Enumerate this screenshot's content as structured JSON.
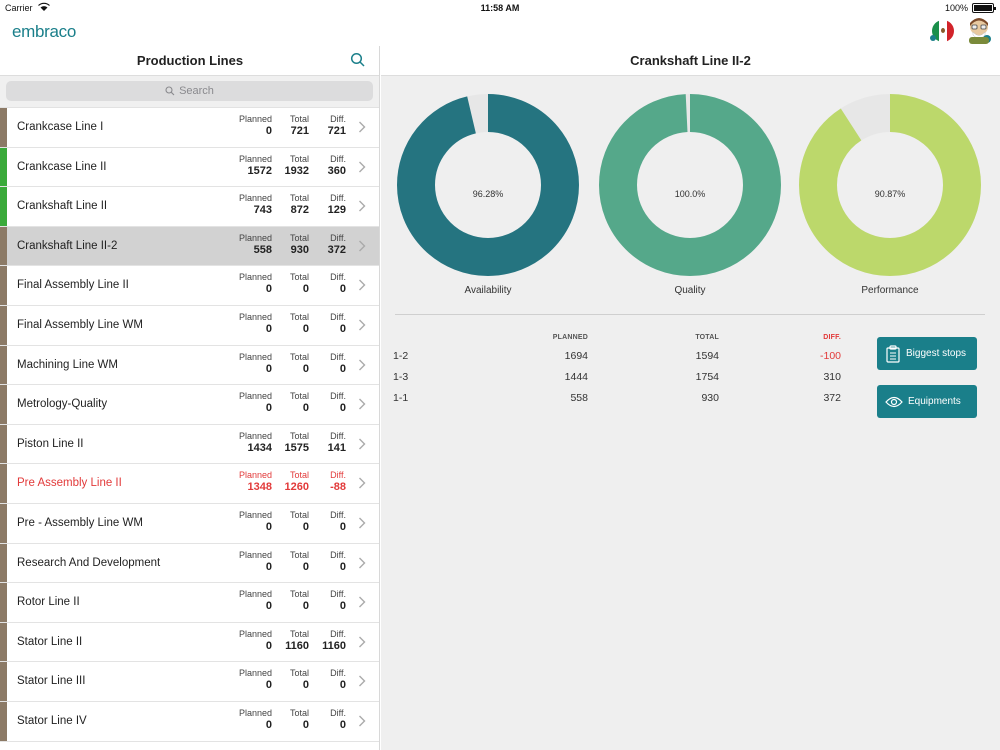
{
  "status": {
    "carrier": "Carrier",
    "time": "11:58 AM",
    "battery": "100%"
  },
  "brand": {
    "logo": "embraco",
    "accent": "#1a7f8a"
  },
  "left": {
    "title": "Production Lines",
    "search_placeholder": "Search",
    "lines": [
      {
        "name": "Crankcase Line I",
        "planned_label": "Planned",
        "planned": "0",
        "total_label": "Total",
        "total": "721",
        "diff_label": "Diff.",
        "diff": "721",
        "stripe": "#8c7a66"
      },
      {
        "name": "Crankcase Line II",
        "planned_label": "Planned",
        "planned": "1572",
        "total_label": "Total",
        "total": "1932",
        "diff_label": "Diff.",
        "diff": "360",
        "stripe": "#3aaa3a"
      },
      {
        "name": "Crankshaft Line II",
        "planned_label": "Planned",
        "planned": "743",
        "total_label": "Total",
        "total": "872",
        "diff_label": "Diff.",
        "diff": "129",
        "stripe": "#3aaa3a"
      },
      {
        "name": "Crankshaft Line II-2",
        "planned_label": "Planned",
        "planned": "558",
        "total_label": "Total",
        "total": "930",
        "diff_label": "Diff.",
        "diff": "372",
        "stripe": "#8c7a66",
        "selected": true
      },
      {
        "name": "Final Assembly Line II",
        "planned_label": "Planned",
        "planned": "0",
        "total_label": "Total",
        "total": "0",
        "diff_label": "Diff.",
        "diff": "0",
        "stripe": "#8c7a66"
      },
      {
        "name": "Final Assembly Line WM",
        "planned_label": "Planned",
        "planned": "0",
        "total_label": "Total",
        "total": "0",
        "diff_label": "Diff.",
        "diff": "0",
        "stripe": "#8c7a66"
      },
      {
        "name": "Machining Line WM",
        "planned_label": "Planned",
        "planned": "0",
        "total_label": "Total",
        "total": "0",
        "diff_label": "Diff.",
        "diff": "0",
        "stripe": "#8c7a66"
      },
      {
        "name": "Metrology-Quality",
        "planned_label": "Planned",
        "planned": "0",
        "total_label": "Total",
        "total": "0",
        "diff_label": "Diff.",
        "diff": "0",
        "stripe": "#8c7a66"
      },
      {
        "name": "Piston Line II",
        "planned_label": "Planned",
        "planned": "1434",
        "total_label": "Total",
        "total": "1575",
        "diff_label": "Diff.",
        "diff": "141",
        "stripe": "#8c7a66"
      },
      {
        "name": "Pre Assembly Line II",
        "planned_label": "Planned",
        "planned": "1348",
        "total_label": "Total",
        "total": "1260",
        "diff_label": "Diff.",
        "diff": "-88",
        "stripe": "#8c7a66",
        "alert": true
      },
      {
        "name": "Pre - Assembly Line WM",
        "planned_label": "Planned",
        "planned": "0",
        "total_label": "Total",
        "total": "0",
        "diff_label": "Diff.",
        "diff": "0",
        "stripe": "#8c7a66"
      },
      {
        "name": "Research And Development",
        "planned_label": "Planned",
        "planned": "0",
        "total_label": "Total",
        "total": "0",
        "diff_label": "Diff.",
        "diff": "0",
        "stripe": "#8c7a66"
      },
      {
        "name": "Rotor Line II",
        "planned_label": "Planned",
        "planned": "0",
        "total_label": "Total",
        "total": "0",
        "diff_label": "Diff.",
        "diff": "0",
        "stripe": "#8c7a66"
      },
      {
        "name": "Stator Line II",
        "planned_label": "Planned",
        "planned": "0",
        "total_label": "Total",
        "total": "1160",
        "diff_label": "Diff.",
        "diff": "1160",
        "stripe": "#8c7a66"
      },
      {
        "name": "Stator Line III",
        "planned_label": "Planned",
        "planned": "0",
        "total_label": "Total",
        "total": "0",
        "diff_label": "Diff.",
        "diff": "0",
        "stripe": "#8c7a66"
      },
      {
        "name": "Stator Line IV",
        "planned_label": "Planned",
        "planned": "0",
        "total_label": "Total",
        "total": "0",
        "diff_label": "Diff.",
        "diff": "0",
        "stripe": "#8c7a66"
      }
    ]
  },
  "detail": {
    "title": "Crankshaft Line II-2",
    "gauges": [
      {
        "name": "Availability",
        "value_text": "96.28%",
        "value": 96.28,
        "color": "#257480"
      },
      {
        "name": "Quality",
        "value_text": "100.0%",
        "value": 100.0,
        "color": "#55a88a"
      },
      {
        "name": "Performance",
        "value_text": "90.87%",
        "value": 90.87,
        "color": "#bcd86b"
      }
    ],
    "table": {
      "headers": {
        "planned": "PLANNED",
        "total": "TOTAL",
        "diff": "DIFF."
      },
      "rows": [
        {
          "label": "1-2",
          "planned": "1694",
          "total": "1594",
          "diff": "-100",
          "negative": true
        },
        {
          "label": "1-3",
          "planned": "1444",
          "total": "1754",
          "diff": "310"
        },
        {
          "label": "1-1",
          "planned": "558",
          "total": "930",
          "diff": "372"
        }
      ]
    },
    "buttons": {
      "biggest_stops": "Biggest stops",
      "equipments": "Equipments"
    }
  }
}
